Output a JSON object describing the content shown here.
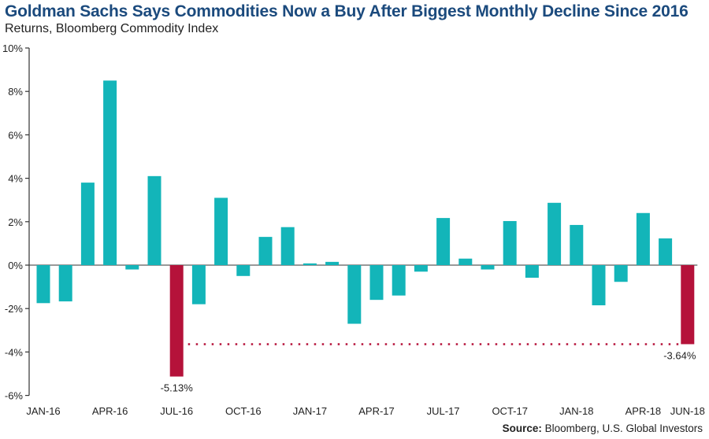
{
  "chart_data": {
    "type": "bar",
    "title": "Goldman Sachs Says Commodities Now a Buy After Biggest Monthly Decline Since 2016",
    "subtitle": "Returns, Bloomberg Commodity Index",
    "source_label": "Source:",
    "source_text": "Bloomberg, U.S. Global Investors",
    "categories": [
      "JAN-16",
      "FEB-16",
      "MAR-16",
      "APR-16",
      "MAY-16",
      "JUN-16",
      "JUL-16",
      "AUG-16",
      "SEP-16",
      "OCT-16",
      "NOV-16",
      "DEC-16",
      "JAN-17",
      "FEB-17",
      "MAR-17",
      "APR-17",
      "MAY-17",
      "JUN-17",
      "JUL-17",
      "AUG-17",
      "SEP-17",
      "OCT-17",
      "NOV-17",
      "DEC-17",
      "JAN-18",
      "FEB-18",
      "MAR-18",
      "APR-18",
      "MAY-18",
      "JUN-18"
    ],
    "values": [
      -1.75,
      -1.67,
      3.8,
      8.5,
      -0.2,
      4.1,
      -5.13,
      -1.8,
      3.1,
      -0.5,
      1.3,
      1.75,
      0.08,
      0.15,
      -2.7,
      -1.6,
      -1.4,
      -0.3,
      2.17,
      0.3,
      -0.2,
      2.03,
      -0.58,
      2.87,
      1.85,
      -1.85,
      -0.77,
      2.4,
      1.23,
      -3.64
    ],
    "x_tick_labels": [
      "JAN-16",
      "APR-16",
      "JUL-16",
      "OCT-16",
      "JAN-17",
      "APR-17",
      "JUL-17",
      "OCT-17",
      "JAN-18",
      "APR-18",
      "JUN-18"
    ],
    "y_ticks": [
      10,
      8,
      6,
      4,
      2,
      0,
      -2,
      -4,
      -6
    ],
    "y_tick_labels": [
      "10%",
      "8%",
      "6%",
      "4%",
      "2%",
      "0%",
      "-2%",
      "-4%",
      "-6%"
    ],
    "ylim": [
      -6,
      10
    ],
    "highlighted": [
      {
        "category": "JUL-16",
        "label": "-5.13%"
      },
      {
        "category": "JUN-18",
        "label": "-3.64%"
      }
    ],
    "reference_line": {
      "value": -3.64,
      "style": "dotted",
      "from": "JUL-16",
      "to": "JUN-18"
    },
    "grid": false,
    "colors": {
      "bar": "#13b5b9",
      "highlight": "#b5123a",
      "title": "#1b4a7d"
    }
  }
}
